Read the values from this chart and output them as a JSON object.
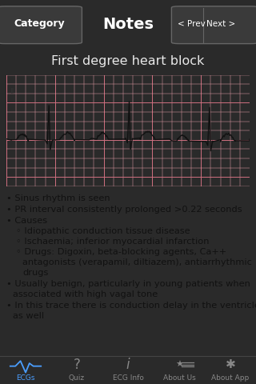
{
  "title_bar_color": "#2a2a2a",
  "title_bar_text": "Notes",
  "title_bar_left": "Category",
  "subtitle": "First degree heart block",
  "subtitle_color": "#e8e8e8",
  "subtitle_bg": "#484848",
  "ecg_bg": "#f9cfd5",
  "ecg_grid_minor_color": "#e8a0aa",
  "ecg_grid_major_color": "#d07080",
  "ecg_line_color": "#111111",
  "content_bg": "#c8c8c8",
  "content_text_color": "#111111",
  "tab_bar_color": "#1a1a1a",
  "tab_items": [
    "ECGs",
    "Quiz",
    "ECG Info",
    "About Us",
    "About App"
  ],
  "tab_active": "ECGs",
  "tab_text_color": "#888888",
  "tab_active_color": "#4a9eff"
}
